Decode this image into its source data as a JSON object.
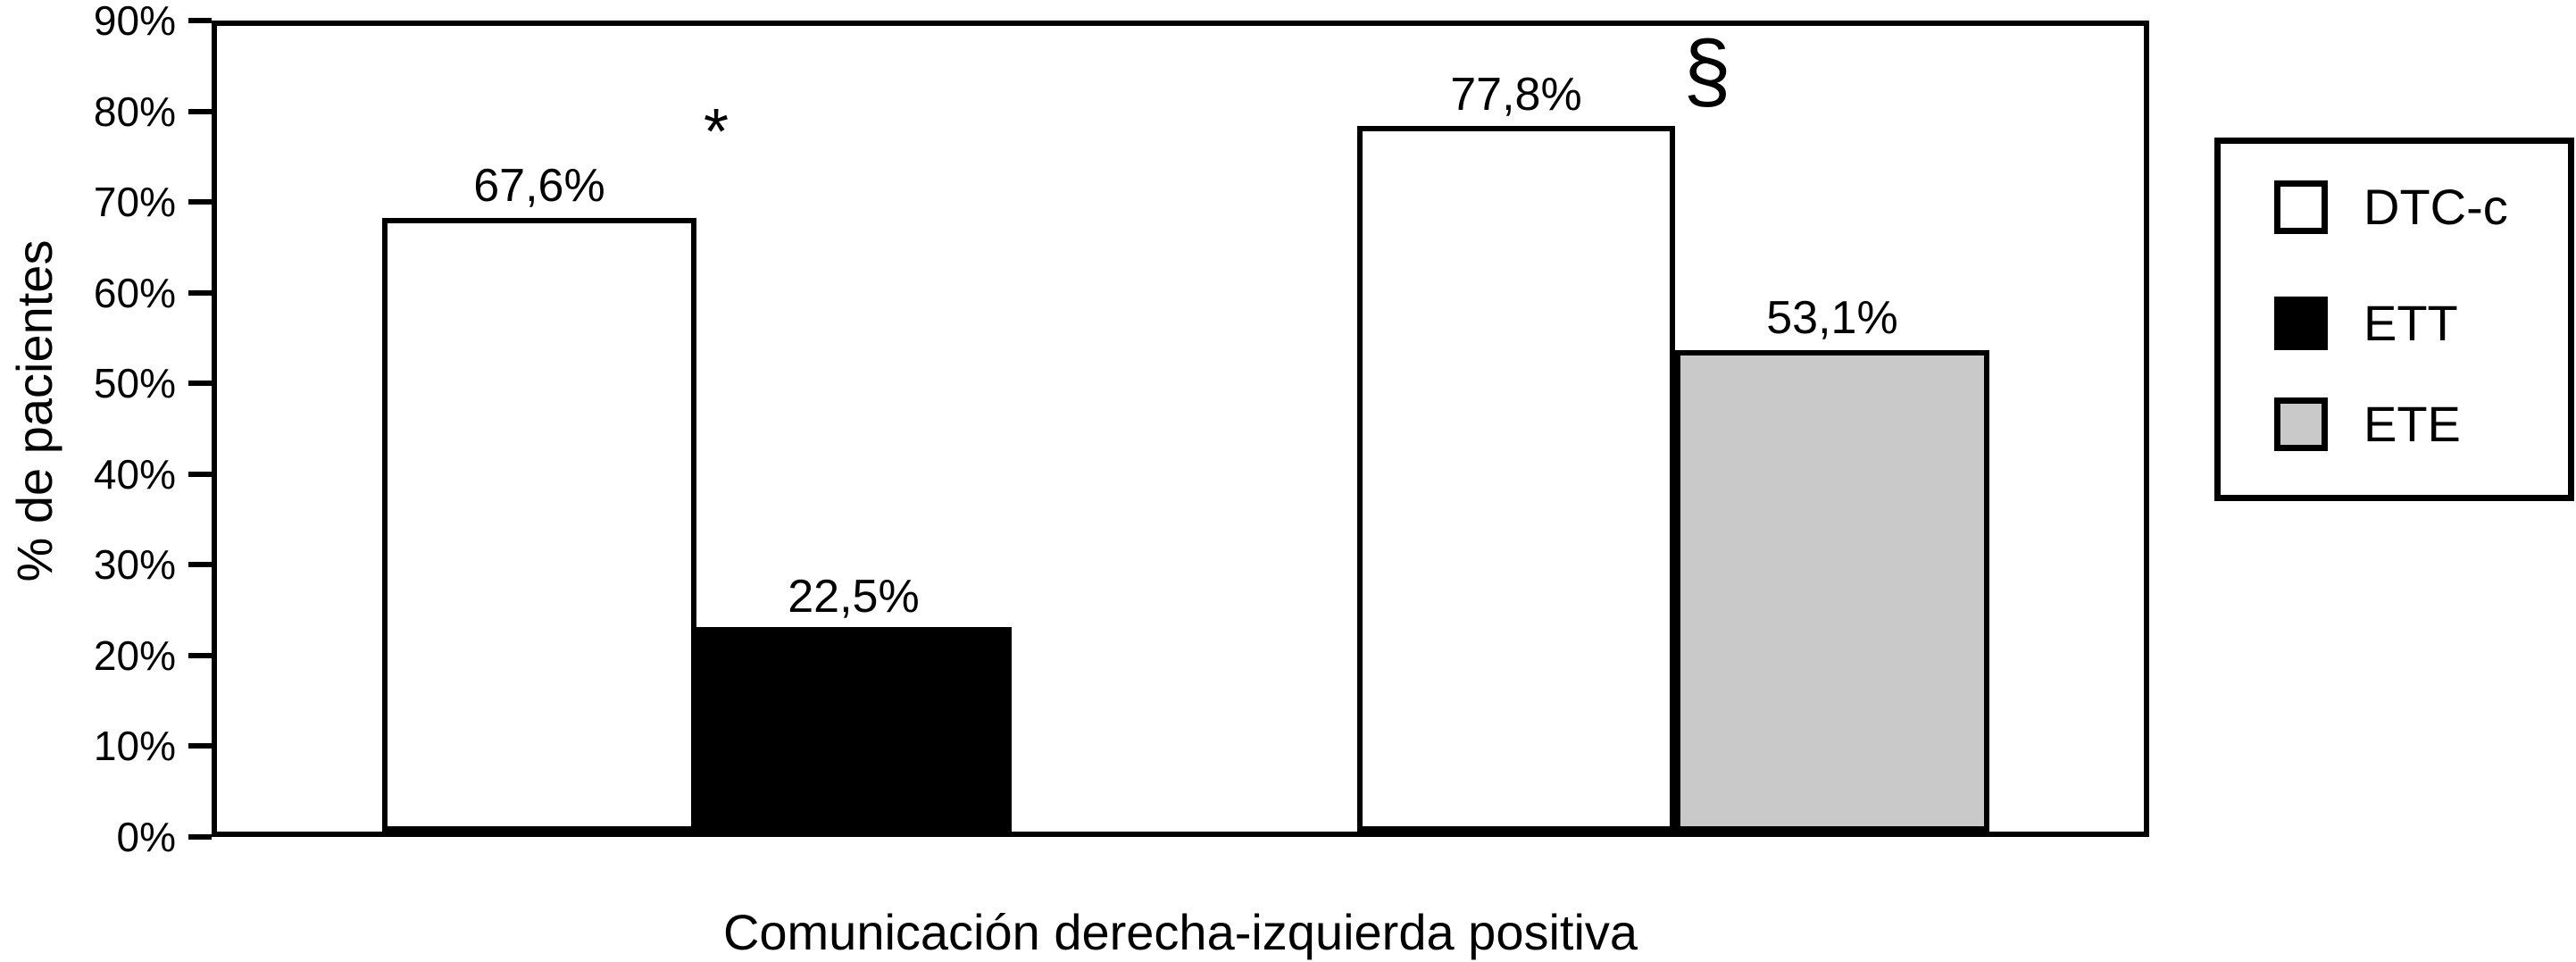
{
  "chart_data": {
    "type": "bar",
    "title": "",
    "xlabel": "Comunicación derecha-izquierda positiva",
    "ylabel": "% de pacientes",
    "ylim": [
      0,
      90
    ],
    "yticks": [
      "0%",
      "10%",
      "20%",
      "30%",
      "40%",
      "50%",
      "60%",
      "70%",
      "80%",
      "90%"
    ],
    "grid": false,
    "legend_position": "right",
    "colors": {
      "dtcc": "#ffffff",
      "ett": "#000000",
      "ete": "#c9c9c9",
      "line": "#000000"
    },
    "legend": [
      {
        "label": "DTC-c",
        "color": "#ffffff"
      },
      {
        "label": "ETT",
        "color": "#000000"
      },
      {
        "label": "ETE",
        "color": "#c9c9c9"
      }
    ],
    "categories": [
      "Comunicación derecha-izquierda positiva"
    ],
    "groups": [
      {
        "bars": [
          {
            "series": "DTC-c",
            "value": 67.6,
            "label": "67,6%",
            "color": "#ffffff",
            "annotation": "*"
          },
          {
            "series": "ETT",
            "value": 22.5,
            "label": "22,5%",
            "color": "#000000",
            "annotation": ""
          }
        ]
      },
      {
        "bars": [
          {
            "series": "DTC-c",
            "value": 77.8,
            "label": "77,8%",
            "color": "#ffffff",
            "annotation": "§"
          },
          {
            "series": "ETE",
            "value": 53.1,
            "label": "53,1%",
            "color": "#c9c9c9",
            "annotation": ""
          }
        ]
      }
    ]
  }
}
